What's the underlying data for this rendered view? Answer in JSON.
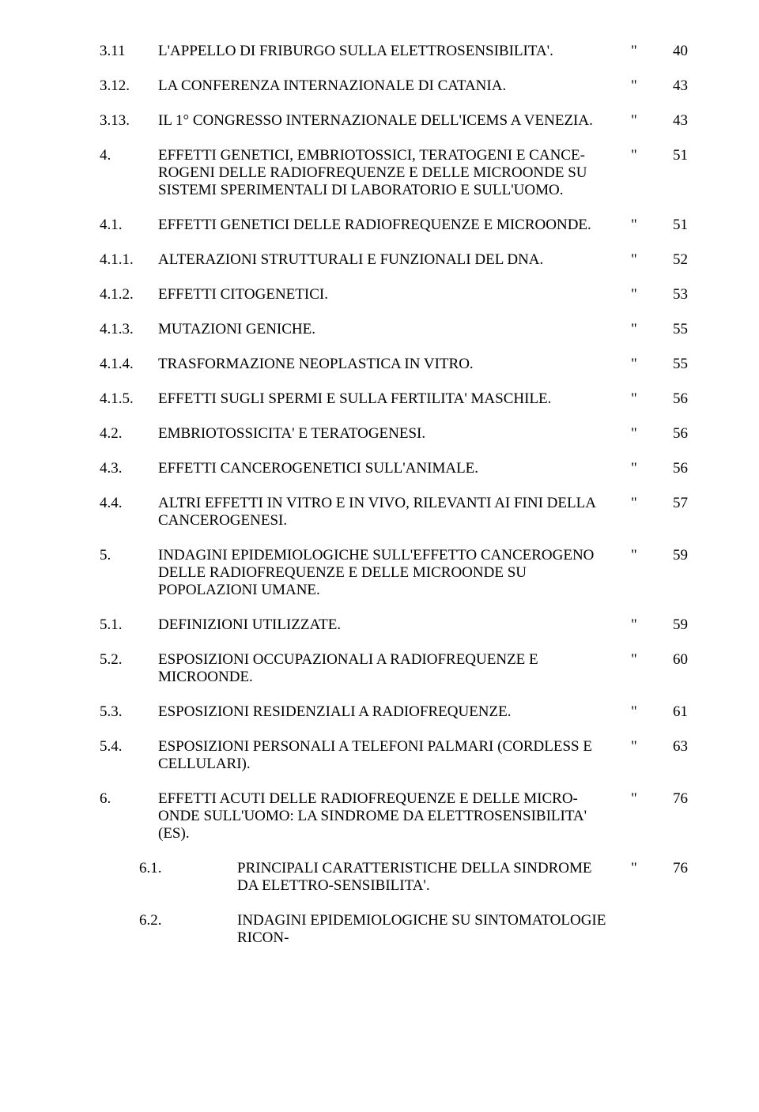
{
  "document": {
    "background_color": "#ffffff",
    "text_color": "#000000",
    "font_family": "Times New Roman",
    "base_font_size_pt": 14
  },
  "toc": [
    {
      "num": "3.11",
      "title": "L'APPELLO DI FRIBURGO SULLA ELETTROSENSIBILITA'.",
      "quote": "\"",
      "page": "40",
      "indent": false
    },
    {
      "num": "3.12.",
      "title": "LA CONFERENZA INTERNAZIONALE DI CATANIA.",
      "quote": "\"",
      "page": "43",
      "indent": false
    },
    {
      "num": "3.13.",
      "title": "IL 1° CONGRESSO INTERNAZIONALE DELL'ICEMS A VENEZIA.",
      "quote": "\"",
      "page": "43",
      "indent": false
    },
    {
      "num": "4.",
      "title": "EFFETTI GENETICI, EMBRIOTOSSICI, TERATOGENI E CANCE-ROGENI DELLE RADIOFREQUENZE E DELLE MICROONDE SU SISTEMI SPERIMENTALI DI LABORATORIO E SULL'UOMO.",
      "quote": "\"",
      "page": "51",
      "indent": false
    },
    {
      "num": "4.1.",
      "title": "EFFETTI GENETICI DELLE RADIOFREQUENZE E MICROONDE.",
      "quote": "\"",
      "page": "51",
      "indent": false
    },
    {
      "num": "4.1.1.",
      "title": "ALTERAZIONI STRUTTURALI E FUNZIONALI DEL DNA.",
      "quote": "\"",
      "page": "52",
      "indent": false
    },
    {
      "num": "4.1.2.",
      "title": "EFFETTI CITOGENETICI.",
      "quote": "\"",
      "page": "53",
      "indent": false
    },
    {
      "num": "4.1.3.",
      "title": "MUTAZIONI GENICHE.",
      "quote": "\"",
      "page": "55",
      "indent": false
    },
    {
      "num": "4.1.4.",
      "title": "TRASFORMAZIONE NEOPLASTICA IN VITRO.",
      "quote": "\"",
      "page": "55",
      "indent": false
    },
    {
      "num": "4.1.5.",
      "title": "EFFETTI SUGLI SPERMI E SULLA FERTILITA' MASCHILE.",
      "quote": "\"",
      "page": "56",
      "indent": false
    },
    {
      "num": "4.2.",
      "title": "EMBRIOTOSSICITA' E TERATOGENESI.",
      "quote": "\"",
      "page": "56",
      "indent": false
    },
    {
      "num": "4.3.",
      "title": "EFFETTI CANCEROGENETICI SULL'ANIMALE.",
      "quote": "\"",
      "page": "56",
      "indent": false
    },
    {
      "num": "4.4.",
      "title": "ALTRI EFFETTI IN VITRO E IN VIVO, RILEVANTI AI FINI DELLA CANCEROGENESI.",
      "quote": "\"",
      "page": "57",
      "indent": false
    },
    {
      "num": "5.",
      "title": "INDAGINI EPIDEMIOLOGICHE SULL'EFFETTO CANCEROGENO DELLE RADIOFREQUENZE E DELLE MICROONDE SU POPOLAZIONI UMANE.",
      "quote": "\"",
      "page": "59",
      "indent": false
    },
    {
      "num": "5.1.",
      "title": "DEFINIZIONI UTILIZZATE.",
      "quote": "\"",
      "page": "59",
      "indent": false
    },
    {
      "num": "5.2.",
      "title": "ESPOSIZIONI OCCUPAZIONALI A RADIOFREQUENZE E MICROONDE.",
      "quote": "\"",
      "page": "60",
      "indent": false
    },
    {
      "num": "5.3.",
      "title": "ESPOSIZIONI RESIDENZIALI A RADIOFREQUENZE.",
      "quote": "\"",
      "page": "61",
      "indent": false
    },
    {
      "num": "5.4.",
      "title": "ESPOSIZIONI PERSONALI A TELEFONI PALMARI (CORDLESS E CELLULARI).",
      "quote": "\"",
      "page": "63",
      "indent": false
    },
    {
      "num": "6.",
      "title": "EFFETTI ACUTI DELLE RADIOFREQUENZE E DELLE MICRO-ONDE SULL'UOMO: LA SINDROME DA ELETTROSENSIBILITA' (ES).",
      "quote": "\"",
      "page": "76",
      "indent": false
    },
    {
      "num": "6.1.",
      "title": "PRINCIPALI CARATTERISTICHE DELLA SINDROME DA ELETTRO-SENSIBILITA'.",
      "quote": "\"",
      "page": "76",
      "indent": true
    },
    {
      "num": "6.2.",
      "title": "INDAGINI EPIDEMIOLOGICHE SU SINTOMATOLOGIE RICON-",
      "quote": "",
      "page": "",
      "indent": true,
      "partial": true
    }
  ]
}
